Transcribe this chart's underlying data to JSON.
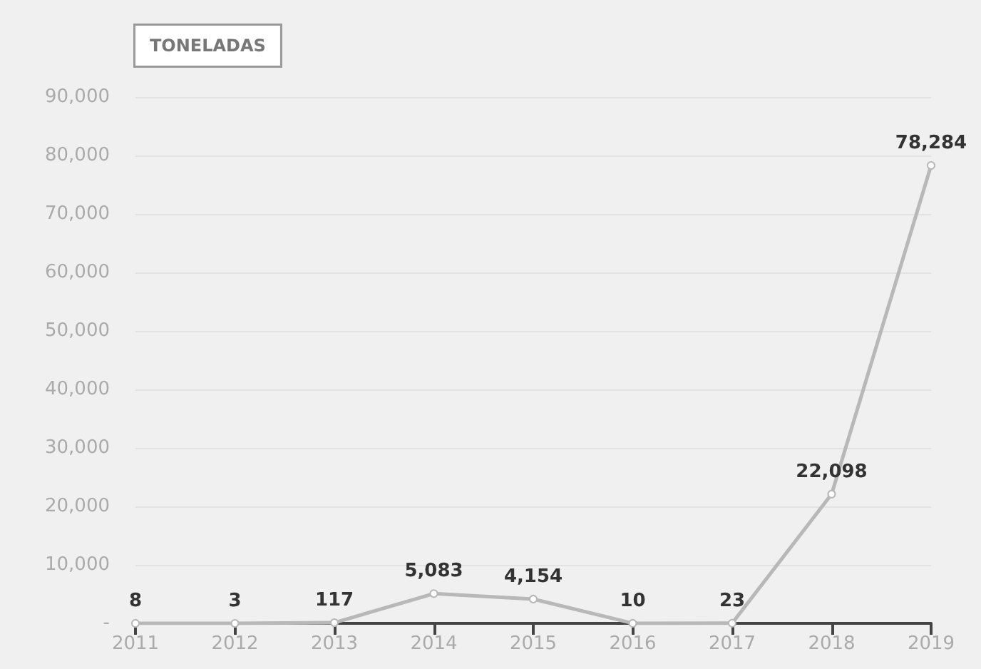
{
  "chart_data": {
    "type": "line",
    "ylabel": "TONELADAS",
    "categories": [
      "2011",
      "2012",
      "2013",
      "2014",
      "2015",
      "2016",
      "2017",
      "2018",
      "2019"
    ],
    "series": [
      {
        "color": "#b8b8b8",
        "values": [
          8,
          3,
          117,
          5083,
          4154,
          10,
          23,
          22098,
          78284
        ],
        "value_labels": [
          "8",
          "3",
          "117",
          "5,083",
          "4,154",
          "10",
          "23",
          "22,098",
          "78,284"
        ]
      }
    ],
    "ylim": [
      0,
      90000
    ],
    "yticks": [
      {
        "value": 0,
        "label": "-"
      },
      {
        "value": 10000,
        "label": "10,000"
      },
      {
        "value": 20000,
        "label": "20,000"
      },
      {
        "value": 30000,
        "label": "30,000"
      },
      {
        "value": 40000,
        "label": "40,000"
      },
      {
        "value": 50000,
        "label": "50,000"
      },
      {
        "value": 60000,
        "label": "60,000"
      },
      {
        "value": 70000,
        "label": "70,000"
      },
      {
        "value": 80000,
        "label": "80,000"
      },
      {
        "value": 90000,
        "label": "90,000"
      }
    ],
    "grid": "y",
    "marker": "circle",
    "line_style": "solid"
  }
}
